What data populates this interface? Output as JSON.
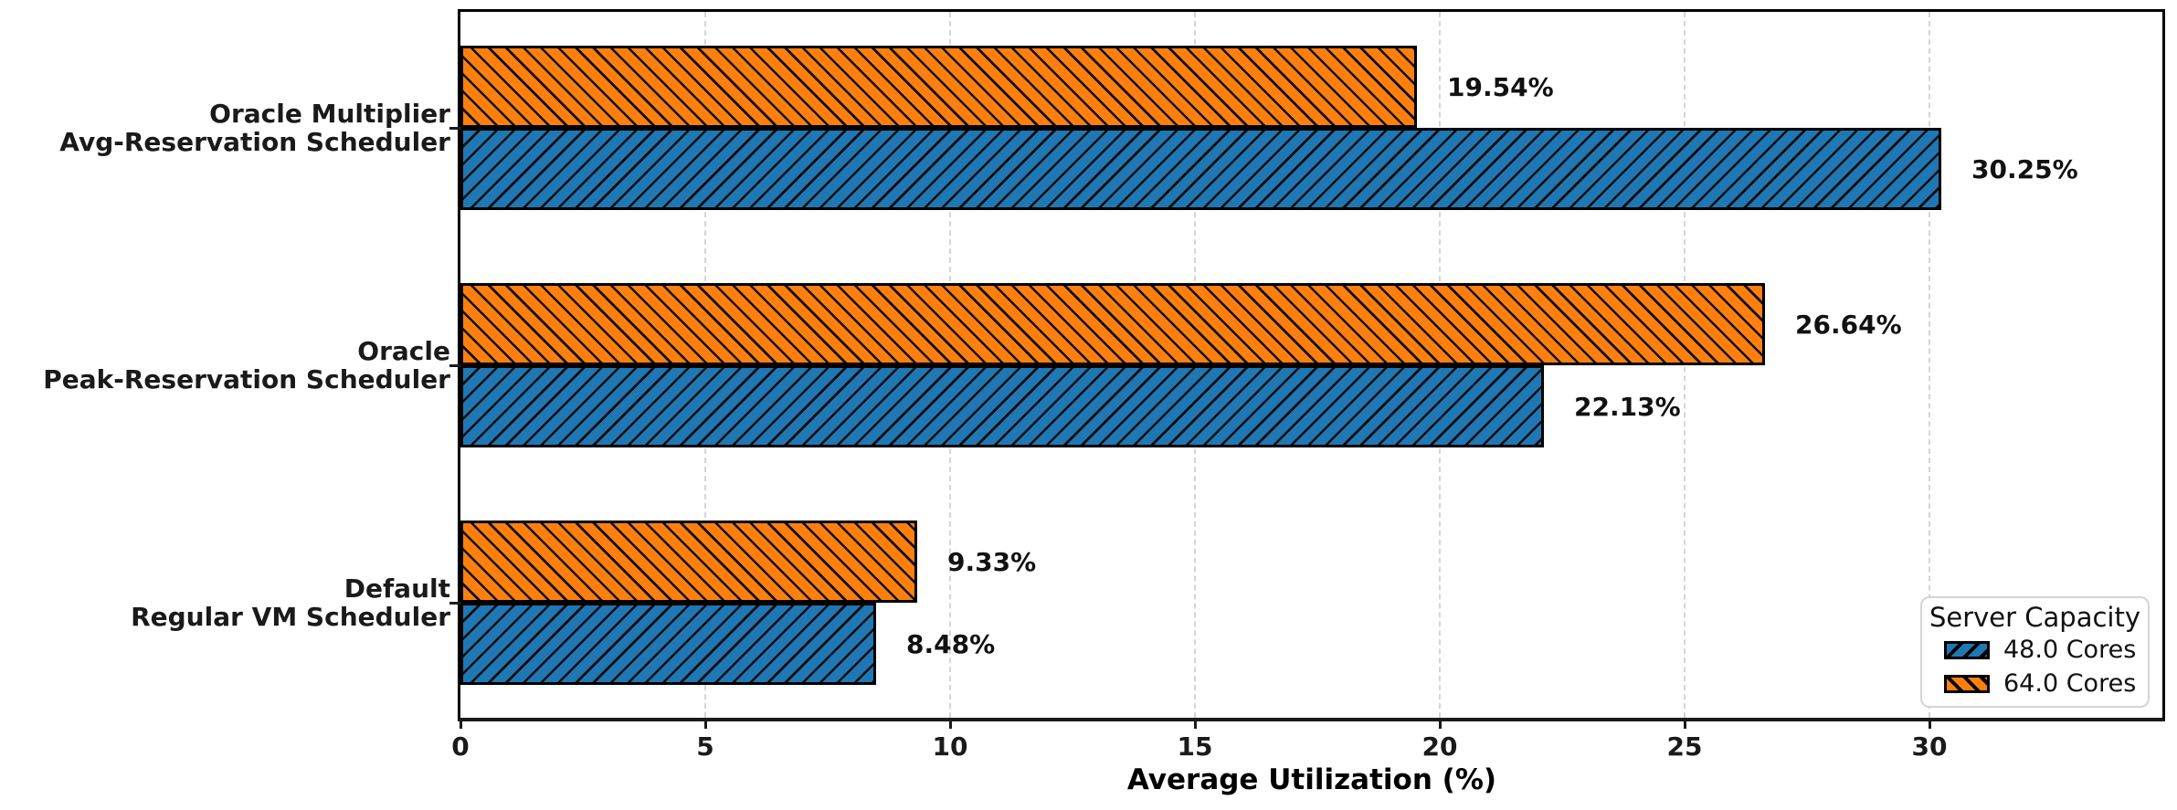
{
  "chart_data": {
    "type": "bar",
    "orientation": "horizontal",
    "title": "",
    "xlabel": "Average Utilization (%)",
    "ylabel": "",
    "categories": [
      [
        "Oracle Multiplier",
        "Avg-Reservation Scheduler"
      ],
      [
        "Oracle",
        "Peak-Reservation Scheduler"
      ],
      [
        "Default",
        "Regular VM Scheduler"
      ]
    ],
    "series": [
      {
        "name": "48.0 Cores",
        "color": "#1f77b4",
        "hatch": "/",
        "values": [
          30.25,
          22.13,
          8.48
        ],
        "value_labels": [
          "30.25%",
          "22.13%",
          "8.48%"
        ]
      },
      {
        "name": "64.0 Cores",
        "color": "#ff7f0e",
        "hatch": "\\",
        "values": [
          19.54,
          26.64,
          9.33
        ],
        "value_labels": [
          "19.54%",
          "26.64%",
          "9.33%"
        ]
      }
    ],
    "x_ticks": [
      0,
      5,
      10,
      15,
      20,
      25,
      30
    ],
    "xlim": [
      0,
      34.8
    ],
    "grid": {
      "axis": "x",
      "style": "dashed",
      "color": "#d5d5d5"
    },
    "legend": {
      "title": "Server Capacity",
      "position": "lower right"
    },
    "bar_edge_color": "#000000",
    "hatch_color": "#0d0d0d"
  }
}
